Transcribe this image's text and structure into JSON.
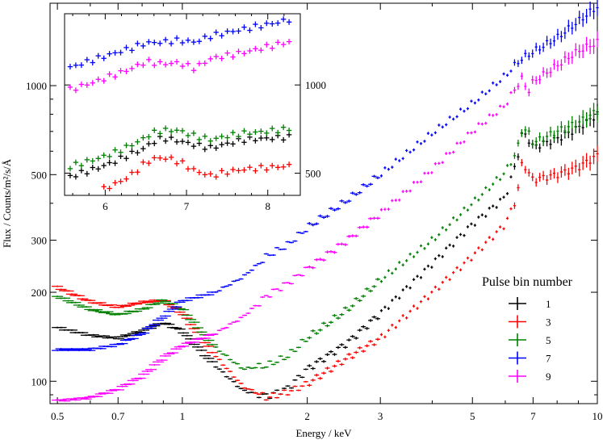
{
  "chart_data": [
    {
      "type": "scatter",
      "xlabel": "Energy / keV",
      "ylabel": "Flux / Counts/m²/s/Å",
      "x_scale": "log",
      "y_scale": "log",
      "xlim": [
        0.48,
        10
      ],
      "ylim": [
        84,
        1900
      ],
      "x_ticks": [
        0.5,
        0.7,
        1,
        2,
        3,
        5,
        7,
        10
      ],
      "x_tick_labels": [
        "0.5",
        "0.7",
        "1",
        "2",
        "3",
        "5",
        "7",
        "10"
      ],
      "y_ticks": [
        100,
        200,
        300,
        500,
        1000
      ],
      "y_tick_labels": [
        "100",
        "200",
        "300",
        "500",
        "1000"
      ],
      "legend_title": "Pulse bin number",
      "legend_position": "right",
      "series": [
        {
          "name": "1",
          "color": "#000000",
          "x": [
            0.5,
            0.6,
            0.7,
            0.8,
            0.9,
            1.0,
            1.2,
            1.4,
            1.6,
            1.8,
            2.0,
            2.5,
            3.0,
            4.0,
            5.0,
            6.0,
            6.4,
            6.6,
            6.8,
            7.0,
            8.0,
            9.0,
            10.0
          ],
          "y": [
            152,
            143,
            140,
            148,
            158,
            148,
            113,
            93,
            89,
            95,
            110,
            135,
            170,
            250,
            340,
            420,
            560,
            700,
            665,
            620,
            660,
            720,
            800
          ]
        },
        {
          "name": "3",
          "color": "#ff0000",
          "x": [
            0.5,
            0.6,
            0.7,
            0.8,
            0.9,
            1.0,
            1.2,
            1.4,
            1.6,
            1.8,
            2.0,
            2.5,
            3.0,
            4.0,
            5.0,
            6.0,
            6.4,
            6.6,
            6.8,
            7.0,
            8.0,
            9.0,
            10.0
          ],
          "y": [
            208,
            186,
            178,
            185,
            188,
            170,
            122,
            96,
            88,
            92,
            98,
            120,
            140,
            200,
            265,
            340,
            420,
            560,
            510,
            480,
            500,
            530,
            580
          ]
        },
        {
          "name": "5",
          "color": "#008000",
          "x": [
            0.5,
            0.6,
            0.7,
            0.8,
            0.9,
            1.0,
            1.2,
            1.4,
            1.6,
            1.8,
            2.0,
            2.5,
            3.0,
            4.0,
            5.0,
            6.0,
            6.4,
            6.6,
            6.8,
            7.0,
            8.0,
            9.0,
            10.0
          ],
          "y": [
            194,
            175,
            168,
            175,
            188,
            175,
            130,
            110,
            113,
            122,
            140,
            175,
            220,
            300,
            400,
            510,
            600,
            720,
            700,
            640,
            700,
            750,
            820
          ]
        },
        {
          "name": "7",
          "color": "#0000ff",
          "x": [
            0.5,
            0.6,
            0.7,
            0.8,
            0.9,
            1.0,
            1.2,
            1.4,
            1.6,
            1.8,
            2.0,
            2.5,
            3.0,
            4.0,
            5.0,
            6.0,
            6.5,
            7.0,
            8.0,
            9.0,
            10.0
          ],
          "y": [
            128,
            128,
            133,
            145,
            165,
            187,
            200,
            225,
            265,
            290,
            330,
            410,
            500,
            690,
            870,
            1080,
            1220,
            1300,
            1450,
            1650,
            1850
          ]
        },
        {
          "name": "9",
          "color": "#ff00ff",
          "x": [
            0.5,
            0.6,
            0.7,
            0.8,
            0.9,
            1.0,
            1.2,
            1.4,
            1.6,
            1.8,
            2.0,
            2.5,
            3.0,
            4.0,
            5.0,
            6.0,
            6.4,
            6.6,
            6.8,
            7.0,
            8.0,
            9.0,
            10.0
          ],
          "y": [
            86,
            88,
            94,
            104,
            120,
            132,
            145,
            165,
            195,
            215,
            240,
            300,
            370,
            520,
            700,
            860,
            1000,
            1060,
            950,
            1030,
            1170,
            1310,
            1400
          ]
        }
      ]
    },
    {
      "type": "scatter",
      "title": "",
      "xlabel": "",
      "ylabel": "",
      "x_scale": "linear",
      "y_scale": "log",
      "xlim": [
        5.5,
        8.4
      ],
      "ylim": [
        420,
        1750
      ],
      "x_ticks": [
        6,
        7,
        8
      ],
      "x_tick_labels": [
        "6",
        "7",
        "8"
      ],
      "y_ticks": [
        500,
        1000
      ],
      "y_tick_labels": [
        "500",
        "1000"
      ],
      "series": [
        {
          "name": "1",
          "color": "#000000",
          "x": [
            5.5,
            5.7,
            5.9,
            6.1,
            6.3,
            6.45,
            6.55,
            6.7,
            6.9,
            7.1,
            7.3,
            7.5,
            7.7,
            7.9,
            8.1,
            8.3
          ],
          "y": [
            480,
            500,
            520,
            545,
            580,
            600,
            630,
            660,
            645,
            625,
            610,
            630,
            650,
            655,
            660,
            665
          ]
        },
        {
          "name": "3",
          "color": "#ff0000",
          "x": [
            5.9,
            6.05,
            6.2,
            6.35,
            6.5,
            6.65,
            6.8,
            6.95,
            7.1,
            7.3,
            7.5,
            7.7,
            7.9,
            8.1,
            8.3
          ],
          "y": [
            430,
            450,
            470,
            500,
            545,
            565,
            560,
            540,
            510,
            490,
            505,
            515,
            520,
            525,
            530
          ]
        },
        {
          "name": "5",
          "color": "#008000",
          "x": [
            5.5,
            5.7,
            5.9,
            6.1,
            6.3,
            6.45,
            6.55,
            6.7,
            6.9,
            7.1,
            7.3,
            7.5,
            7.7,
            7.9,
            8.1,
            8.3
          ],
          "y": [
            520,
            540,
            560,
            585,
            620,
            650,
            680,
            700,
            700,
            670,
            650,
            670,
            685,
            690,
            700,
            710
          ]
        },
        {
          "name": "7",
          "color": "#0000ff",
          "x": [
            5.5,
            5.7,
            5.9,
            6.1,
            6.3,
            6.5,
            6.7,
            6.9,
            7.1,
            7.3,
            7.5,
            7.7,
            7.9,
            8.1,
            8.3
          ],
          "y": [
            1130,
            1180,
            1230,
            1280,
            1330,
            1390,
            1400,
            1420,
            1400,
            1470,
            1510,
            1550,
            1590,
            1630,
            1680
          ]
        },
        {
          "name": "9",
          "color": "#ff00ff",
          "x": [
            5.5,
            5.7,
            5.9,
            6.1,
            6.3,
            6.5,
            6.7,
            6.9,
            7.1,
            7.3,
            7.5,
            7.7,
            7.9,
            8.1,
            8.3
          ],
          "y": [
            950,
            990,
            1030,
            1080,
            1130,
            1200,
            1180,
            1190,
            1140,
            1230,
            1260,
            1290,
            1330,
            1370,
            1410
          ]
        }
      ]
    }
  ]
}
